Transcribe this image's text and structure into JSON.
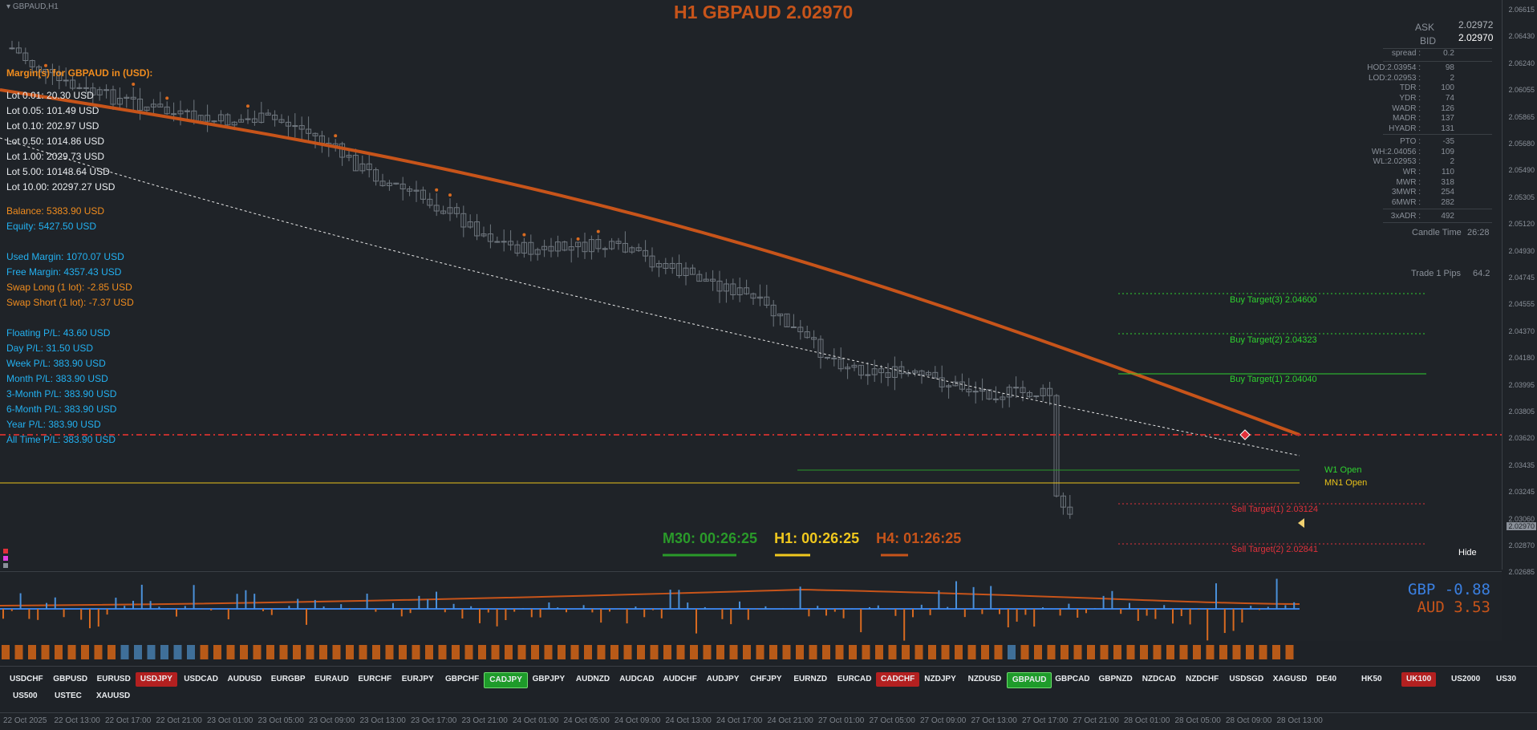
{
  "chart": {
    "symbol_label": "GBPAUD,H1",
    "title": "H1 GBPAUD 2.02970",
    "ask_label": "ASK",
    "ask_value": "2.02972",
    "bid_label": "BID",
    "bid_value": "2.02970",
    "current_price_tag": "2.02970"
  },
  "margin_panel": {
    "heading": "Margin(s) for GBPAUD in (USD):",
    "lots": [
      "Lot 0.01: 20.30 USD",
      "Lot 0.05: 101.49 USD",
      "Lot 0.10: 202.97 USD",
      "Lot 0.50: 1014.86 USD",
      "Lot 1.00: 2029.73 USD",
      "Lot 5.00: 10148.64 USD",
      "Lot 10.00: 20297.27 USD"
    ],
    "balance": "Balance: 5383.90 USD",
    "equity": "Equity: 5427.50 USD",
    "used_margin": "Used Margin: 1070.07 USD",
    "free_margin": "Free Margin: 4357.43 USD",
    "swap_long": "Swap Long (1 lot): -2.85 USD",
    "swap_short": "Swap Short (1 lot): -7.37 USD",
    "pl": [
      "Floating P/L: 43.60 USD",
      "Day P/L: 31.50 USD",
      "Week P/L: 383.90 USD",
      "Month P/L: 383.90 USD",
      "3-Month P/L: 383.90 USD",
      "6-Month P/L: 383.90 USD",
      "Year P/L: 383.90 USD",
      "All Time P/L: 383.90 USD"
    ]
  },
  "stats": [
    {
      "label": "spread :",
      "value": "0.2"
    },
    {
      "label": "HOD:2.03954 :",
      "value": "98"
    },
    {
      "label": "LOD:2.02953 :",
      "value": "2"
    },
    {
      "label": "TDR :",
      "value": "100"
    },
    {
      "label": "YDR :",
      "value": "74"
    },
    {
      "label": "WADR :",
      "value": "126"
    },
    {
      "label": "MADR :",
      "value": "137"
    },
    {
      "label": "HYADR :",
      "value": "131"
    },
    {
      "label": "PTO :",
      "value": "-35"
    },
    {
      "label": "WH:2.04056 :",
      "value": "109"
    },
    {
      "label": "WL:2.02953 :",
      "value": "2"
    },
    {
      "label": "WR :",
      "value": "110"
    },
    {
      "label": "MWR :",
      "value": "318"
    },
    {
      "label": "3MWR :",
      "value": "254"
    },
    {
      "label": "6MWR :",
      "value": "282"
    },
    {
      "label": "3xADR :",
      "value": "492"
    }
  ],
  "candle_time": {
    "label": "Candle Time",
    "value": "26:28"
  },
  "trade_pips": {
    "label": "Trade 1 Pips",
    "value": "64.2"
  },
  "targets": {
    "buy3": "Buy Target(3) 2.04600",
    "buy2": "Buy Target(2) 2.04323",
    "buy1": "Buy Target(1) 2.04040",
    "w1_open": "W1 Open",
    "mn1_open": "MN1 Open",
    "sell1": "Sell Target(1) 2.03124",
    "sell2": "Sell Target(2) 2.02841"
  },
  "timers": {
    "m30": "M30: 00:26:25",
    "h1": "H1: 00:26:25",
    "h4": "H4: 01:26:25"
  },
  "hide_label": "Hide",
  "strength": {
    "gbp": "GBP -0.88",
    "aud": "AUD  3.53"
  },
  "price_ticks": [
    "2.06615",
    "2.06430",
    "2.06240",
    "2.06055",
    "2.05865",
    "2.05680",
    "2.05490",
    "2.05305",
    "2.05120",
    "2.04930",
    "2.04745",
    "2.04555",
    "2.04370",
    "2.04180",
    "2.03995",
    "2.03805",
    "2.03620",
    "2.03435",
    "2.03245",
    "2.03060",
    "2.02870",
    "2.02685"
  ],
  "time_ticks": [
    "22 Oct 2025",
    "22 Oct 13:00",
    "22 Oct 17:00",
    "22 Oct 21:00",
    "23 Oct 01:00",
    "23 Oct 05:00",
    "23 Oct 09:00",
    "23 Oct 13:00",
    "23 Oct 17:00",
    "23 Oct 21:00",
    "24 Oct 01:00",
    "24 Oct 05:00",
    "24 Oct 09:00",
    "24 Oct 13:00",
    "24 Oct 17:00",
    "24 Oct 21:00",
    "27 Oct 01:00",
    "27 Oct 05:00",
    "27 Oct 09:00",
    "27 Oct 13:00",
    "27 Oct 17:00",
    "27 Oct 21:00",
    "28 Oct 01:00",
    "28 Oct 05:00",
    "28 Oct 09:00",
    "28 Oct 13:00"
  ],
  "symbols_row1": [
    "USDCHF",
    "GBPUSD",
    "EURUSD",
    "USDJPY",
    "USDCAD",
    "AUDUSD",
    "EURGBP",
    "EURAUD",
    "EURCHF",
    "EURJPY",
    "GBPCHF",
    "CADJPY",
    "GBPJPY",
    "AUDNZD",
    "AUDCAD",
    "AUDCHF",
    "AUDJPY",
    "CHFJPY",
    "EURNZD",
    "EURCAD",
    "CADCHF",
    "NZDJPY",
    "NZDUSD",
    "GBPAUD",
    "GBPCAD",
    "GBPNZD",
    "NZDCAD",
    "NZDCHF",
    "USDSGD",
    "XAGUSD",
    "DE40",
    "HK50",
    "UK100",
    "US2000",
    "US30"
  ],
  "symbols_row2": [
    "US500",
    "USTEC",
    "XAUUSD"
  ],
  "colors": {
    "accent": "#c7541a",
    "ma": "#c7541a",
    "buy": "#2fd12f",
    "sell": "#e0303a",
    "w1": "#2a9a2a",
    "mn1": "#e8c21a",
    "gbp": "#3a7fe0",
    "aud": "#c7541a"
  }
}
